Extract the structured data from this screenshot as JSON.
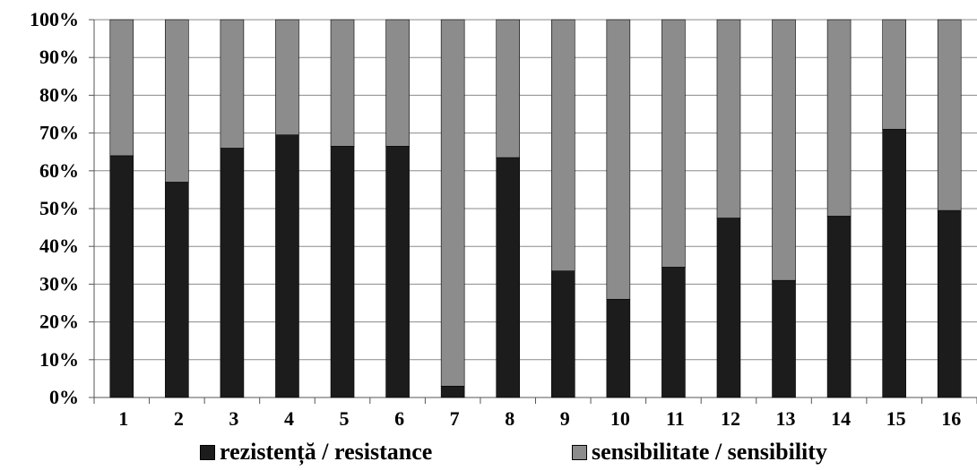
{
  "chart_data": {
    "type": "bar",
    "stacked": true,
    "percent": true,
    "categories": [
      "1",
      "2",
      "3",
      "4",
      "5",
      "6",
      "7",
      "8",
      "9",
      "10",
      "11",
      "12",
      "13",
      "14",
      "15",
      "16"
    ],
    "series": [
      {
        "name": "rezistență / resistance",
        "color": "#1c1c1c",
        "values": [
          64,
          57,
          66,
          69.5,
          66.5,
          66.5,
          3,
          63.5,
          33.5,
          26,
          34.5,
          47.5,
          31,
          48,
          71,
          49.5
        ]
      },
      {
        "name": "sensibilitate / sensibility",
        "color": "#8c8c8c",
        "values": [
          36,
          43,
          34,
          30.5,
          33.5,
          33.5,
          97,
          36.5,
          66.5,
          74,
          65.5,
          52.5,
          69,
          52,
          29,
          50.5
        ]
      }
    ],
    "y_ticks": [
      "0%",
      "10%",
      "20%",
      "30%",
      "40%",
      "50%",
      "60%",
      "70%",
      "80%",
      "90%",
      "100%"
    ],
    "ylim": [
      0,
      100
    ],
    "grid": true,
    "legend_position": "bottom",
    "title": "",
    "xlabel": "",
    "ylabel": ""
  }
}
